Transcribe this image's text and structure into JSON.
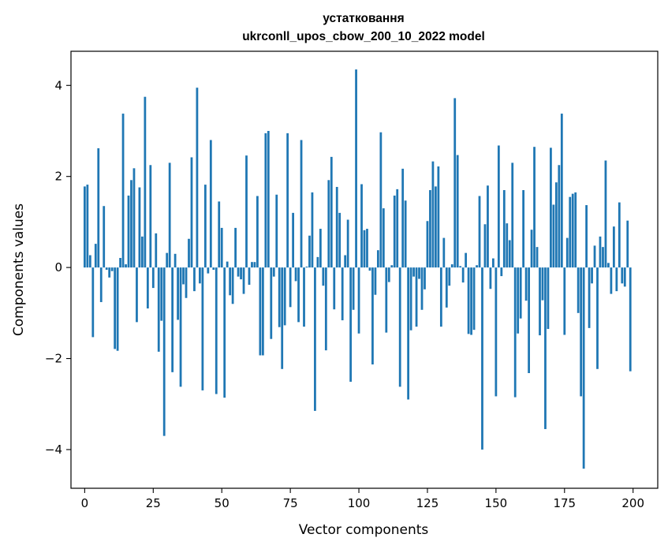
{
  "chart_data": {
    "type": "bar",
    "title": "устатковання",
    "subtitle": "ukrconll_upos_cbow_200_10_2022 model",
    "xlabel": "Vector components",
    "ylabel": "Components values",
    "xlim": [
      -5,
      209
    ],
    "ylim": [
      -4.85,
      4.75
    ],
    "xticks": [
      0,
      25,
      50,
      75,
      100,
      125,
      150,
      175,
      200
    ],
    "xtick_labels": [
      "0",
      "25",
      "50",
      "75",
      "100",
      "125",
      "150",
      "175",
      "200"
    ],
    "yticks": [
      -4,
      -2,
      0,
      2,
      4
    ],
    "ytick_labels": [
      "−4",
      "−2",
      "0",
      "2",
      "4"
    ],
    "grid": false,
    "bar_color": "#1f77b4",
    "x": [
      0,
      1,
      2,
      3,
      4,
      5,
      6,
      7,
      8,
      9,
      10,
      11,
      12,
      13,
      14,
      15,
      16,
      17,
      18,
      19,
      20,
      21,
      22,
      23,
      24,
      25,
      26,
      27,
      28,
      29,
      30,
      31,
      32,
      33,
      34,
      35,
      36,
      37,
      38,
      39,
      40,
      41,
      42,
      43,
      44,
      45,
      46,
      47,
      48,
      49,
      50,
      51,
      52,
      53,
      54,
      55,
      56,
      57,
      58,
      59,
      60,
      61,
      62,
      63,
      64,
      65,
      66,
      67,
      68,
      69,
      70,
      71,
      72,
      73,
      74,
      75,
      76,
      77,
      78,
      79,
      80,
      81,
      82,
      83,
      84,
      85,
      86,
      87,
      88,
      89,
      90,
      91,
      92,
      93,
      94,
      95,
      96,
      97,
      98,
      99,
      100,
      101,
      102,
      103,
      104,
      105,
      106,
      107,
      108,
      109,
      110,
      111,
      112,
      113,
      114,
      115,
      116,
      117,
      118,
      119,
      120,
      121,
      122,
      123,
      124,
      125,
      126,
      127,
      128,
      129,
      130,
      131,
      132,
      133,
      134,
      135,
      136,
      137,
      138,
      139,
      140,
      141,
      142,
      143,
      144,
      145,
      146,
      147,
      148,
      149,
      150,
      151,
      152,
      153,
      154,
      155,
      156,
      157,
      158,
      159,
      160,
      161,
      162,
      163,
      164,
      165,
      166,
      167,
      168,
      169,
      170,
      171,
      172,
      173,
      174,
      175,
      176,
      177,
      178,
      179,
      180,
      181,
      182,
      183,
      184,
      185,
      186,
      187,
      188,
      189,
      190,
      191,
      192,
      193,
      194,
      195,
      196,
      197,
      198,
      199
    ],
    "values": [
      1.78,
      1.82,
      0.27,
      -1.53,
      0.52,
      2.62,
      -0.76,
      1.35,
      -0.05,
      -0.22,
      -0.08,
      -1.79,
      -1.83,
      0.21,
      3.38,
      0.07,
      1.58,
      1.92,
      2.18,
      -1.2,
      1.76,
      0.68,
      3.75,
      -0.9,
      2.25,
      -0.45,
      0.75,
      -1.85,
      -1.17,
      -3.7,
      0.32,
      2.3,
      -2.3,
      0.3,
      -1.15,
      -2.62,
      -0.37,
      -0.67,
      0.63,
      2.42,
      -0.52,
      3.95,
      -0.35,
      -2.7,
      1.82,
      -0.13,
      2.8,
      -0.05,
      -2.78,
      1.45,
      0.87,
      -2.86,
      0.13,
      -0.61,
      -0.8,
      0.87,
      -0.2,
      -0.26,
      -0.58,
      2.46,
      -0.38,
      0.12,
      0.12,
      1.57,
      -1.93,
      -1.93,
      2.95,
      3.0,
      -1.57,
      -0.2,
      1.6,
      -1.31,
      -2.23,
      -1.27,
      2.95,
      -0.87,
      1.2,
      -0.3,
      -1.2,
      2.8,
      -1.3,
      0.02,
      0.7,
      1.65,
      -3.15,
      0.23,
      0.85,
      -0.4,
      -1.82,
      1.92,
      2.43,
      -0.92,
      1.77,
      1.2,
      -1.16,
      0.27,
      1.05,
      -2.51,
      -0.93,
      4.35,
      -1.45,
      1.83,
      0.82,
      0.85,
      -0.07,
      -2.13,
      -0.6,
      0.38,
      2.97,
      1.3,
      -1.43,
      -0.32,
      0.05,
      1.58,
      1.72,
      -2.62,
      2.17,
      1.47,
      -2.9,
      -1.38,
      -0.2,
      -1.3,
      -0.25,
      -0.93,
      -0.48,
      1.02,
      1.7,
      2.33,
      1.78,
      2.22,
      -1.3,
      0.65,
      -0.88,
      -0.4,
      0.07,
      3.72,
      2.47,
      0.03,
      -0.33,
      0.32,
      -1.46,
      -1.48,
      -1.37,
      0.05,
      1.57,
      -4.0,
      0.95,
      1.8,
      -0.47,
      0.2,
      -2.83,
      2.68,
      -0.19,
      1.7,
      0.97,
      0.6,
      2.3,
      -2.85,
      -1.45,
      -1.12,
      1.7,
      -0.73,
      -2.32,
      0.83,
      2.65,
      0.45,
      -1.49,
      -0.72,
      -3.55,
      -1.35,
      2.63,
      1.38,
      1.87,
      2.25,
      3.38,
      -1.48,
      0.65,
      1.55,
      1.62,
      1.65,
      -1.0,
      -2.83,
      -4.42,
      1.37,
      -1.33,
      -0.35,
      0.48,
      -2.23,
      0.68,
      0.45,
      2.35,
      0.1,
      -0.58,
      0.9,
      -0.52,
      1.43,
      -0.35,
      -0.42,
      1.03,
      -2.28
    ]
  }
}
